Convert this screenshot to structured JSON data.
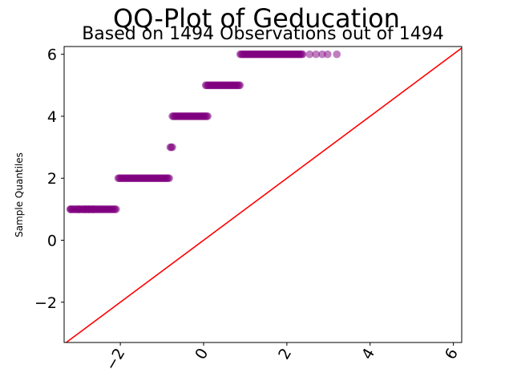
{
  "chart_data": {
    "type": "scatter",
    "title": "QQ-Plot of Geducation",
    "subtitle": "Based on 1494 Observations out of 1494",
    "xlabel": "",
    "ylabel": "Sample Quantiles",
    "xlim": [
      -3.35,
      6.2
    ],
    "ylim": [
      -3.3,
      6.25
    ],
    "x_ticks": [
      -2,
      0,
      2,
      4,
      6
    ],
    "x_tick_labels": [
      "−2",
      "0",
      "2",
      "4",
      "6"
    ],
    "y_ticks": [
      -2,
      0,
      2,
      4,
      6
    ],
    "y_tick_labels": [
      "−2",
      "0",
      "2",
      "4",
      "6"
    ],
    "grid": false,
    "reference_line": {
      "slope": 1,
      "intercept": 0,
      "color": "#ff0000"
    },
    "point_color": "#800080",
    "groups": [
      {
        "y": 1,
        "x_from": -3.2,
        "x_to": -2.1,
        "sparse_x": [
          -3.2,
          -3.0,
          -2.85,
          -2.75,
          -2.65
        ]
      },
      {
        "y": 2,
        "x_from": -2.05,
        "x_to": -0.82,
        "sparse_x": []
      },
      {
        "y": 3,
        "x_from": -0.8,
        "x_to": -0.75,
        "sparse_x": []
      },
      {
        "y": 4,
        "x_from": -0.75,
        "x_to": 0.1,
        "sparse_x": []
      },
      {
        "y": 5,
        "x_from": 0.05,
        "x_to": 0.88,
        "sparse_x": []
      },
      {
        "y": 6,
        "x_from": 0.88,
        "x_to": 2.4,
        "sparse_x": [
          2.55,
          2.7,
          2.85,
          2.98,
          3.2
        ]
      }
    ]
  }
}
